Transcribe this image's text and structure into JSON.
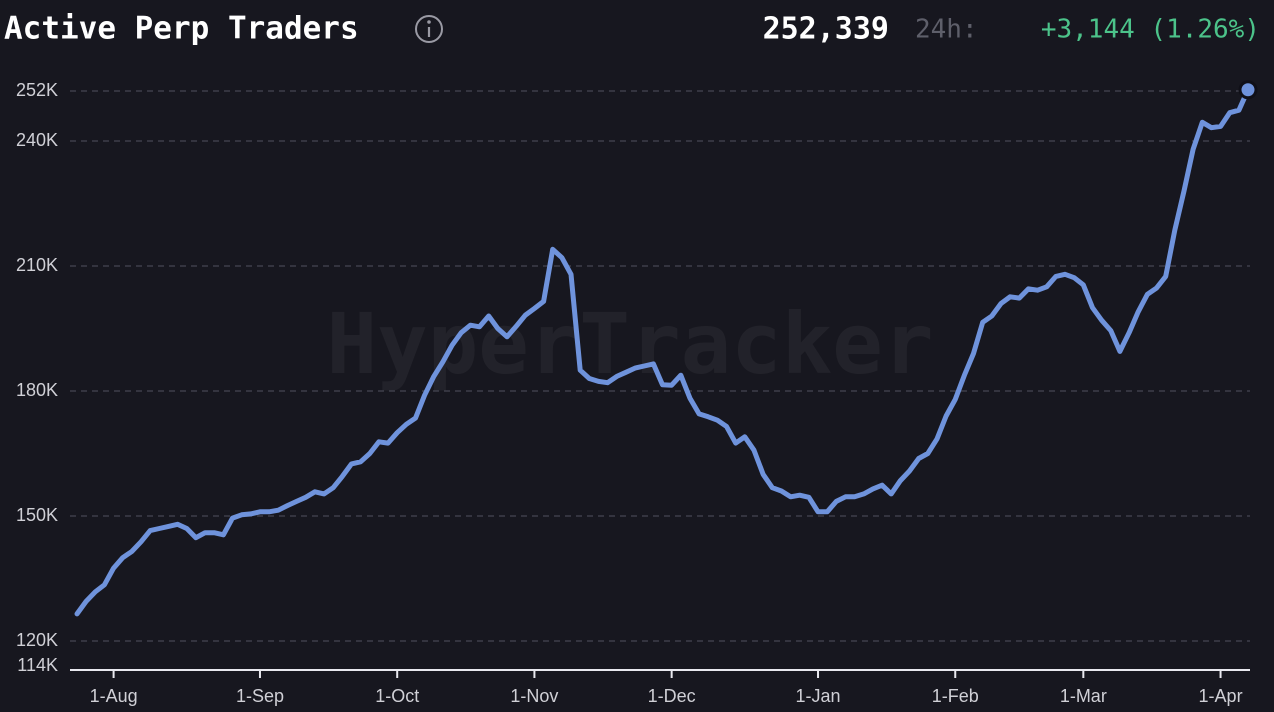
{
  "chart_data": {
    "type": "line",
    "title": "Active Perp Traders",
    "current_value": "252,339",
    "change_period": "24h:",
    "change": "+3,144 (1.26%)",
    "watermark": "HyperTracker",
    "categories": [
      null,
      null,
      null,
      null,
      "1-Aug",
      null,
      null,
      null,
      null,
      null,
      null,
      null,
      null,
      null,
      null,
      null,
      null,
      null,
      null,
      null,
      "1-Sep",
      null,
      null,
      null,
      null,
      null,
      null,
      null,
      null,
      null,
      null,
      null,
      null,
      null,
      null,
      "1-Oct",
      null,
      null,
      null,
      null,
      null,
      null,
      null,
      null,
      null,
      null,
      null,
      null,
      null,
      null,
      "1-Nov",
      null,
      null,
      null,
      null,
      null,
      null,
      null,
      null,
      null,
      null,
      null,
      null,
      null,
      null,
      "1-Dec",
      null,
      null,
      null,
      null,
      null,
      null,
      null,
      null,
      null,
      null,
      null,
      null,
      null,
      null,
      null,
      "1-Jan",
      null,
      null,
      null,
      null,
      null,
      null,
      null,
      null,
      null,
      null,
      null,
      null,
      null,
      null,
      "1-Feb",
      null,
      null,
      null,
      null,
      null,
      null,
      null,
      null,
      null,
      null,
      null,
      null,
      null,
      "1-Mar",
      null,
      null,
      null,
      null,
      null,
      null,
      null,
      null,
      null,
      null,
      null,
      null,
      null,
      null,
      "1-Apr",
      null,
      null,
      null
    ],
    "series": [
      {
        "color": "#6f93dc",
        "values": [
          126.5,
          129.5,
          131.8,
          133.5,
          137.5,
          140,
          141.5,
          143.8,
          146.5,
          147,
          147.5,
          148,
          147,
          144.8,
          146,
          146,
          145.5,
          149.5,
          150.3,
          150.5,
          151,
          151,
          151.4,
          152.5,
          153.5,
          154.5,
          155.8,
          155.3,
          156.8,
          159.5,
          162.5,
          163,
          165,
          167.8,
          167.5,
          170,
          172,
          173.5,
          179,
          183.5,
          187,
          191,
          194,
          195.8,
          195.4,
          198,
          195,
          193,
          195.5,
          198.2,
          199.8,
          201.5,
          214,
          212,
          208,
          185,
          183,
          182.3,
          182,
          183.5,
          184.5,
          185.5,
          186,
          186.5,
          181.5,
          181.4,
          183.8,
          178.3,
          174.5,
          173.8,
          173,
          171.5,
          167.5,
          169,
          165.8,
          160,
          156.8,
          156,
          154.6,
          155,
          154.5,
          151,
          151,
          153.5,
          154.6,
          154.6,
          155.3,
          156.5,
          157.4,
          155.3,
          158.5,
          160.8,
          163.8,
          165,
          168.5,
          174,
          178,
          183.8,
          189,
          196.5,
          198,
          201,
          202.6,
          202.3,
          204.5,
          204.2,
          205,
          207.5,
          208,
          207.2,
          205.5,
          200,
          197,
          194.5,
          189.5,
          194,
          199,
          203.2,
          204.7,
          207.5,
          218.6,
          228,
          238,
          244.5,
          243.2,
          243.5,
          246.8,
          247.4,
          252.3
        ]
      }
    ],
    "ylim": [
      114,
      252
    ],
    "yticks": [
      {
        "value": 114,
        "label": "114K"
      },
      {
        "value": 120,
        "label": "120K"
      },
      {
        "value": 150,
        "label": "150K"
      },
      {
        "value": 180,
        "label": "180K"
      },
      {
        "value": 210,
        "label": "210K"
      },
      {
        "value": 240,
        "label": "240K"
      },
      {
        "value": 252,
        "label": "252K"
      }
    ],
    "grid": true
  }
}
